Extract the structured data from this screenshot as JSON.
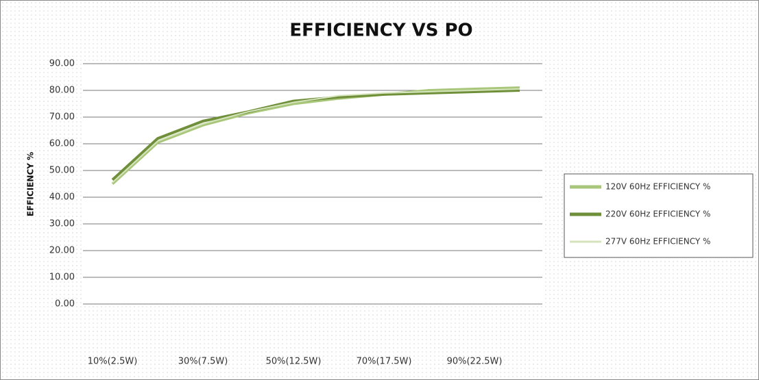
{
  "chart_data": {
    "type": "line",
    "title": "EFFICIENCY VS PO",
    "y_label": "EFFICIENCY %",
    "categories": [
      "10%(2.5W)",
      null,
      "30%(7.5W)",
      null,
      "50%(12.5W)",
      null,
      "70%(17.5W)",
      null,
      "90%(22.5W)",
      null
    ],
    "series": [
      {
        "name": "120V 60Hz  EFFICIENCY %",
        "color": "#a9c77a",
        "width": 4,
        "values": [
          45,
          60.5,
          67,
          71.5,
          75,
          77,
          78.5,
          80,
          80.5,
          81
        ]
      },
      {
        "name": "220V 60Hz EFFICIENCY %",
        "color": "#6f8f3a",
        "width": 4,
        "values": [
          46.5,
          62,
          68.5,
          72,
          76,
          77.5,
          78.5,
          79,
          79.5,
          80
        ]
      },
      {
        "name": "277V 60Hz  EFFICIENCY %",
        "color": "#d6e4bd",
        "width": 2,
        "values": [
          45.5,
          61,
          67.5,
          72,
          75.5,
          78,
          79,
          79.5,
          80,
          80.5
        ]
      }
    ],
    "ylim": [
      0,
      90
    ],
    "yticks": [
      {
        "value": 0,
        "label": "0.00"
      },
      {
        "value": 10,
        "label": "10.00"
      },
      {
        "value": 20,
        "label": "20.00"
      },
      {
        "value": 30,
        "label": "30.00"
      },
      {
        "value": 40,
        "label": "40.00"
      },
      {
        "value": 50,
        "label": "50.00"
      },
      {
        "value": 60,
        "label": "60.00"
      },
      {
        "value": 70,
        "label": "70.00"
      },
      {
        "value": 80,
        "label": "80.00"
      },
      {
        "value": 90,
        "label": "90.00"
      }
    ],
    "grid": true,
    "legend": "right"
  }
}
